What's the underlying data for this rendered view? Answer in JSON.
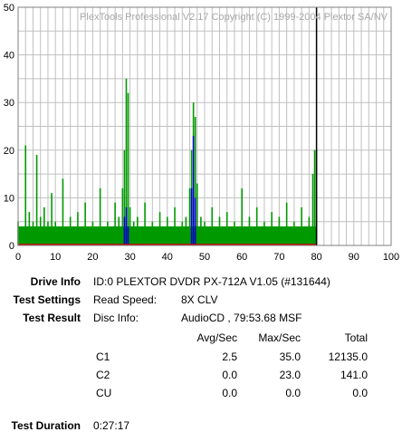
{
  "chart_data": {
    "type": "bar",
    "title": "PlexTools Professional V2.17 Copyright (C) 1999-2004 Plextor SA/NV",
    "xlim": [
      0,
      100
    ],
    "ylim": [
      0,
      50
    ],
    "x_ticks": [
      "0",
      "10",
      "20",
      "30",
      "40",
      "50",
      "60",
      "70",
      "80",
      "90",
      "100"
    ],
    "y_ticks": [
      "0",
      "10",
      "20",
      "30",
      "40",
      "50"
    ],
    "grid": true,
    "disc_end_marker_x": 80,
    "colors": {
      "c1": "#009900",
      "c2": "#0000cc",
      "cu": "#cc0000",
      "marker": "#000000",
      "grid": "#c0c0c0"
    },
    "series": [
      {
        "name": "C1",
        "x": [
          0,
          2,
          3,
          4,
          5,
          6,
          7,
          8,
          9,
          10,
          12,
          14,
          16,
          18,
          20,
          22,
          24,
          26,
          27,
          28,
          28.5,
          29,
          29.5,
          30,
          31,
          32,
          34,
          36,
          38,
          40,
          42,
          44,
          45,
          46,
          46.5,
          47,
          47.5,
          48,
          49,
          50,
          52,
          54,
          56,
          58,
          60,
          62,
          64,
          66,
          68,
          70,
          72,
          74,
          76,
          78,
          79,
          79.5,
          80
        ],
        "values": [
          5,
          21,
          7,
          5,
          19,
          6,
          8,
          5,
          11,
          5,
          14,
          6,
          7,
          9,
          5,
          12,
          5,
          9,
          6,
          12,
          20,
          35,
          32,
          8,
          5,
          6,
          9,
          5,
          7,
          6,
          8,
          5,
          6,
          12,
          20,
          30,
          27,
          13,
          6,
          5,
          8,
          6,
          7,
          5,
          12,
          6,
          8,
          5,
          7,
          6,
          9,
          5,
          8,
          6,
          15,
          20,
          20
        ]
      },
      {
        "name": "C2",
        "x": [
          28.5,
          29,
          29.5,
          46.5,
          47,
          47.5
        ],
        "values": [
          6,
          8,
          4,
          12,
          23,
          10
        ]
      },
      {
        "name": "CU",
        "x": [],
        "values": []
      }
    ]
  },
  "info": {
    "drive_info_label": "Drive Info",
    "drive_info_value": "ID:0 PLEXTOR DVDR PX-712A V1.05 (#131644)",
    "test_settings_label": "Test Settings",
    "read_speed_label": "Read Speed:",
    "read_speed_value": "8X CLV",
    "test_result_label": "Test Result",
    "disc_info_label": "Disc Info:",
    "disc_info_value": "AudioCD , 79:53.68 MSF",
    "table": {
      "headers": [
        "Avg/Sec",
        "Max/Sec",
        "Total"
      ],
      "rows": [
        {
          "name": "C1",
          "avg": "2.5",
          "max": "35.0",
          "total": "12135.0"
        },
        {
          "name": "C2",
          "avg": "0.0",
          "max": "23.0",
          "total": "141.0"
        },
        {
          "name": "CU",
          "avg": "0.0",
          "max": "0.0",
          "total": "0.0"
        }
      ]
    },
    "test_duration_label": "Test Duration",
    "test_duration_value": "0:27:17"
  }
}
